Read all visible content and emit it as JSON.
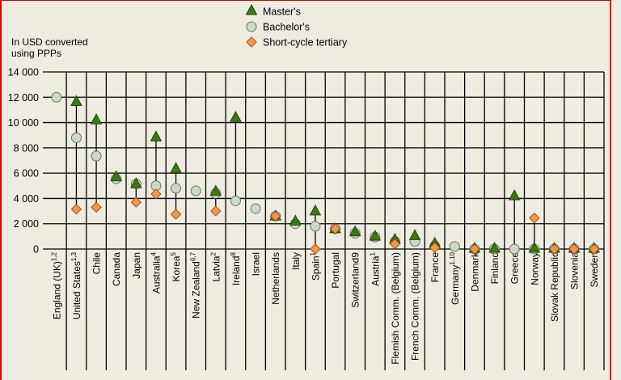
{
  "chart_data": {
    "type": "scatter",
    "title": "",
    "ylabel": "In USD converted using PPPs",
    "ylabel_lines": [
      "In USD converted",
      "using PPPs"
    ],
    "ylim": [
      0,
      14000
    ],
    "yticks": [
      0,
      2000,
      4000,
      6000,
      8000,
      10000,
      12000,
      14000
    ],
    "ytick_labels": [
      "0",
      "2 000",
      "4 000",
      "6 000",
      "8 000",
      "10 000",
      "12 000",
      "14 000"
    ],
    "grid": true,
    "legend_position": "top-center",
    "categories": [
      {
        "name": "England (UK)",
        "sup": "1,2"
      },
      {
        "name": "United States",
        "sup": "1,3"
      },
      {
        "name": "Chile",
        "sup": ""
      },
      {
        "name": "Canada",
        "sup": ""
      },
      {
        "name": "Japan",
        "sup": ""
      },
      {
        "name": "Australia",
        "sup": "4"
      },
      {
        "name": "Korea",
        "sup": "5"
      },
      {
        "name": "New Zealand",
        "sup": "6,7"
      },
      {
        "name": "Latvia",
        "sup": "2"
      },
      {
        "name": "Ireland",
        "sup": "8"
      },
      {
        "name": "Israel",
        "sup": ""
      },
      {
        "name": "Netherlands",
        "sup": ""
      },
      {
        "name": "Italy",
        "sup": ""
      },
      {
        "name": "Spain",
        "sup": "1"
      },
      {
        "name": "Portugal",
        "sup": ""
      },
      {
        "name": "Switzerland9",
        "sup": ""
      },
      {
        "name": "Austria",
        "sup": "1"
      },
      {
        "name": "Flemish Comm. (Belgium)",
        "sup": ""
      },
      {
        "name": "French Comm. (Belgium)",
        "sup": ""
      },
      {
        "name": "France",
        "sup": ""
      },
      {
        "name": "Germany",
        "sup": "1,10"
      },
      {
        "name": "Denmark",
        "sup": ""
      },
      {
        "name": "Finland",
        "sup": ""
      },
      {
        "name": "Greece",
        "sup": ""
      },
      {
        "name": "Norway",
        "sup": ""
      },
      {
        "name": "Slovak Republic",
        "sup": ""
      },
      {
        "name": "Slovenia",
        "sup": ""
      },
      {
        "name": "Sweden",
        "sup": ""
      }
    ],
    "series": [
      {
        "name": "Master's",
        "marker": "triangle",
        "color": "#3a7a10",
        "values": [
          null,
          11600,
          10150,
          5650,
          5100,
          8800,
          6300,
          null,
          4500,
          10350,
          null,
          2550,
          2150,
          2950,
          1550,
          1300,
          950,
          700,
          1000,
          400,
          null,
          0,
          0,
          4150,
          0,
          0,
          0,
          0
        ]
      },
      {
        "name": "Bachelor's",
        "marker": "circle",
        "color": "#c8dcc4",
        "values": [
          12000,
          8800,
          7350,
          5550,
          5150,
          5000,
          4800,
          4600,
          4400,
          3800,
          3200,
          2600,
          2000,
          1800,
          1600,
          1250,
          950,
          600,
          600,
          250,
          200,
          0,
          0,
          0,
          0,
          0,
          0,
          0
        ]
      },
      {
        "name": "Short-cycle tertiary",
        "marker": "diamond",
        "color": "#f79646",
        "values": [
          null,
          3150,
          3300,
          null,
          3700,
          4350,
          2750,
          null,
          3000,
          null,
          null,
          2600,
          null,
          0,
          1600,
          null,
          null,
          400,
          null,
          100,
          null,
          0,
          null,
          null,
          2450,
          0,
          0,
          0
        ]
      }
    ]
  }
}
